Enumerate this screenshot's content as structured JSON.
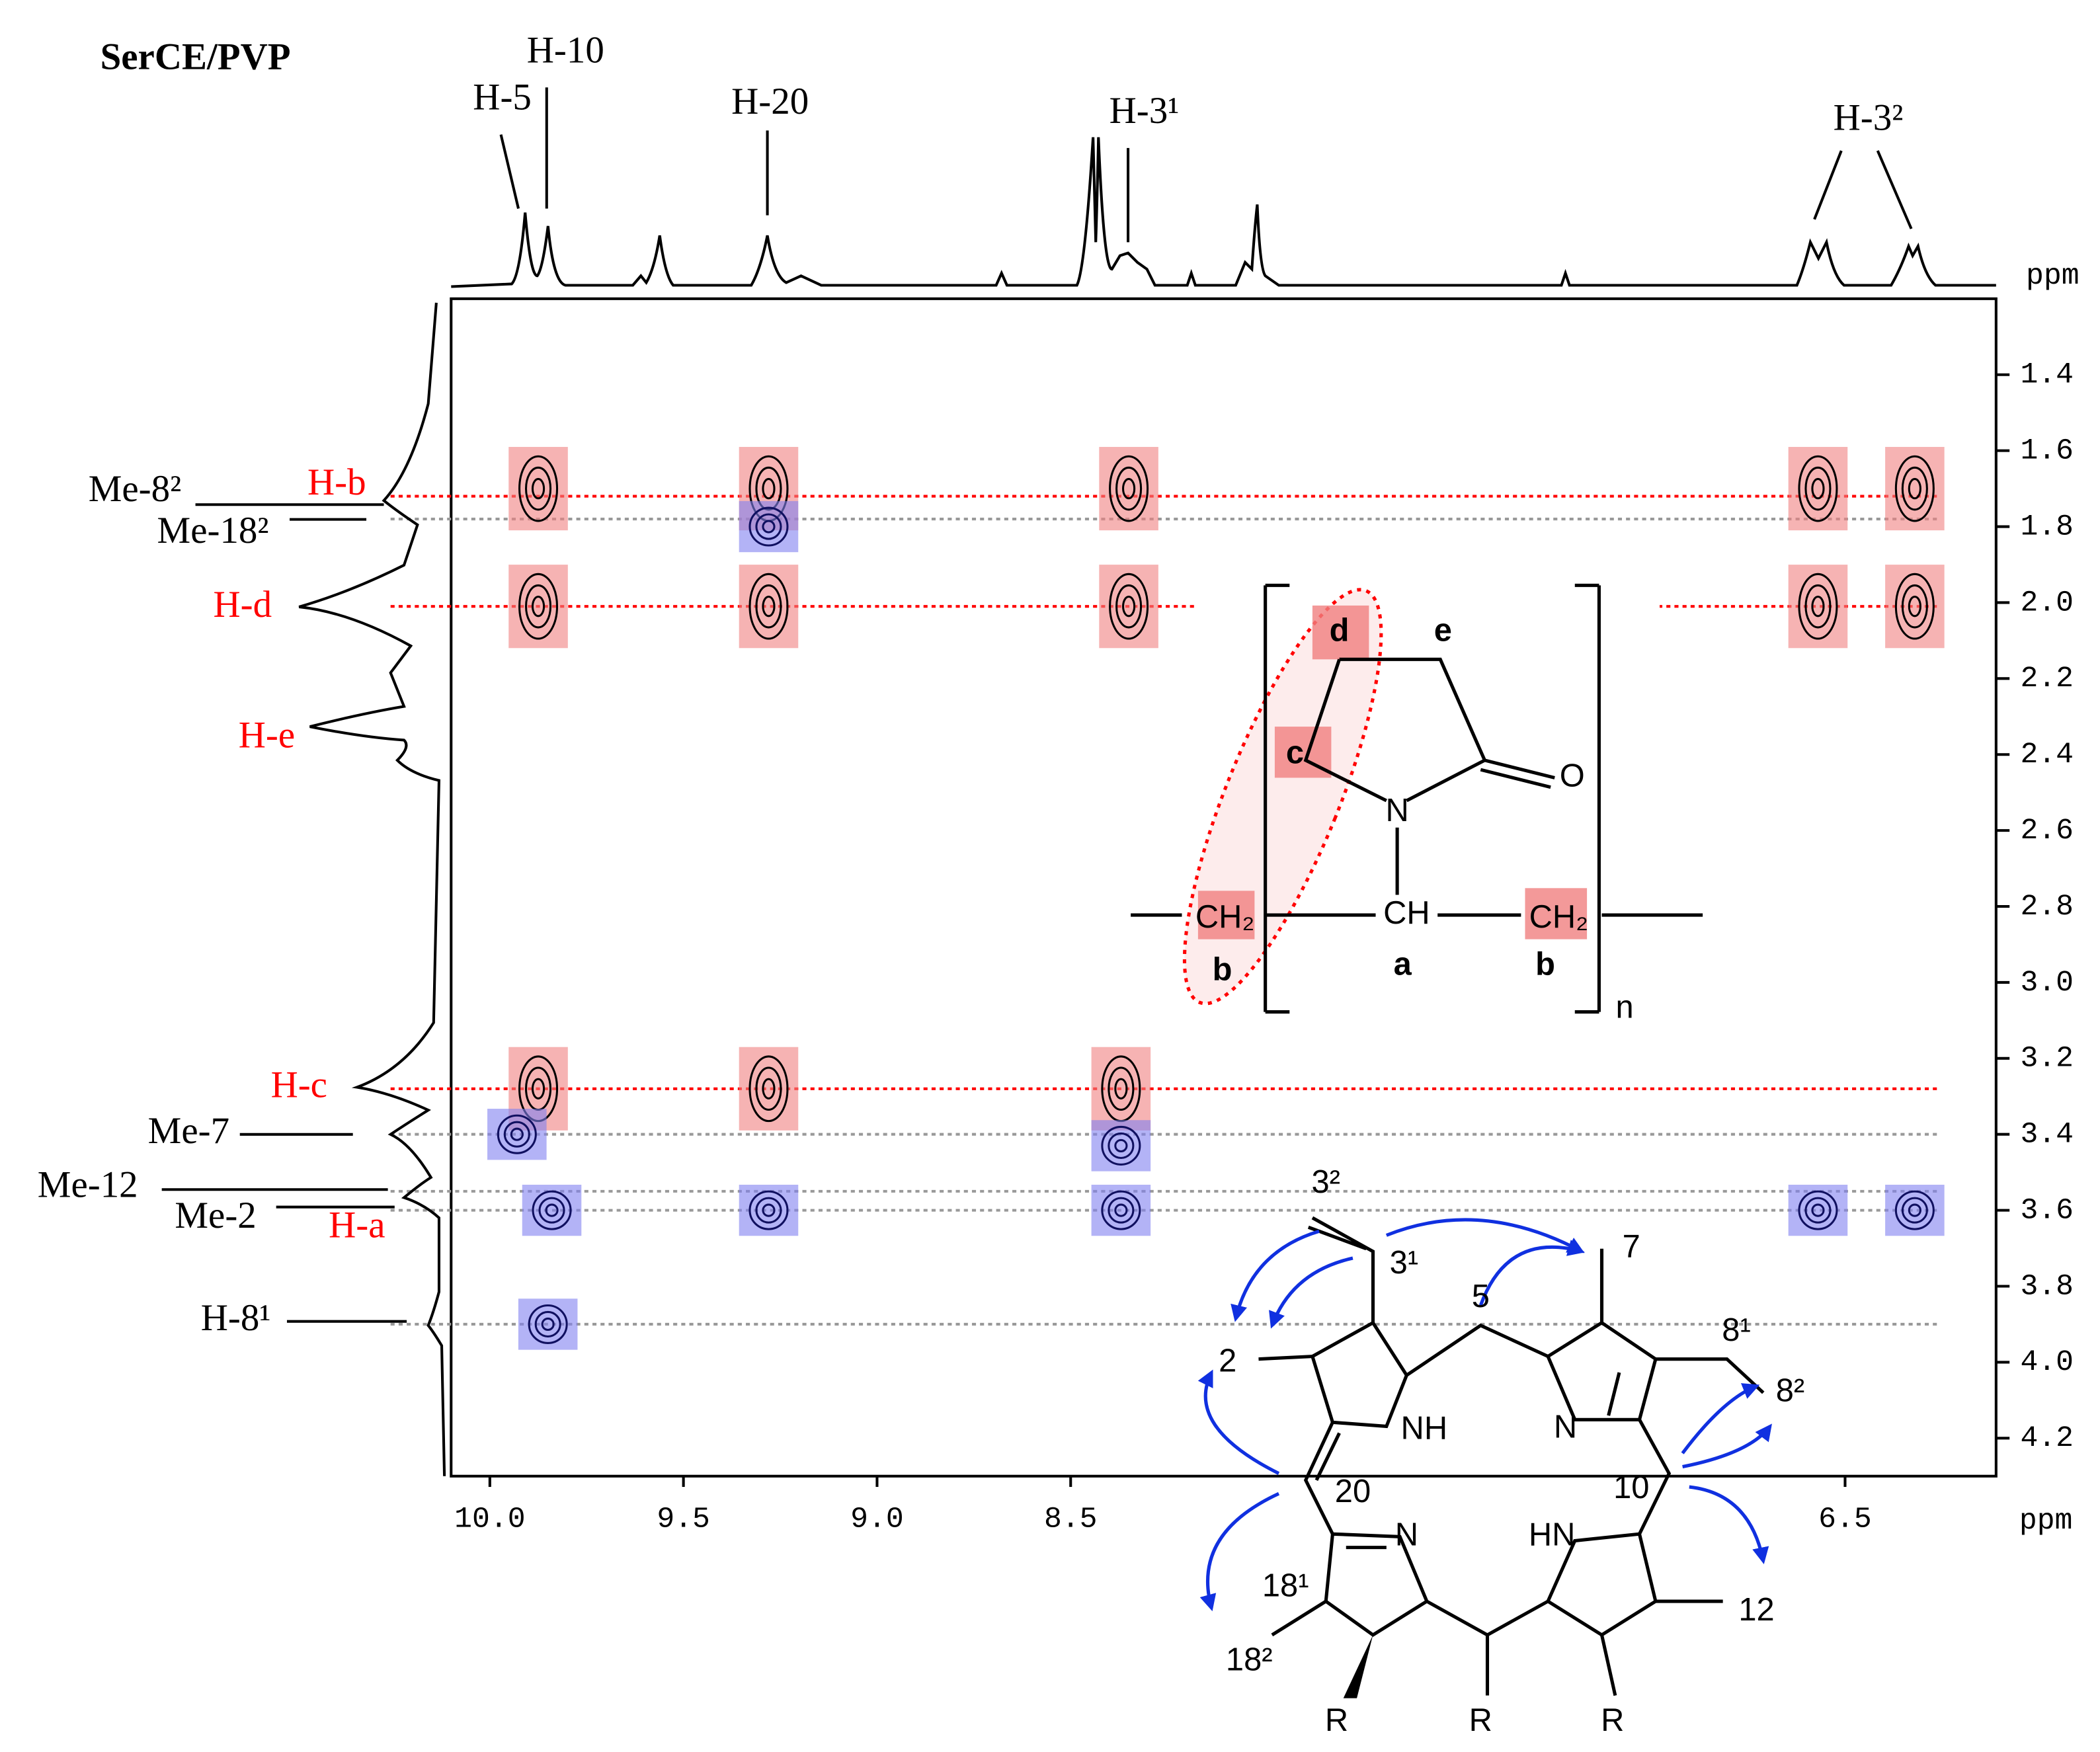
{
  "chart_data": {
    "type": "nmr2d",
    "title": "SerCE/PVP",
    "x_unit": "ppm",
    "y_unit": "ppm",
    "xlim": [
      10.1,
      6.11
    ],
    "ylim": [
      1.2,
      4.3
    ],
    "xticks": [
      {
        "value": 10,
        "label": "10.0"
      },
      9.5,
      {
        "value": 9,
        "label": "9.0"
      },
      8.5,
      6.5
    ],
    "yticks": [
      1.4,
      1.6,
      1.8,
      {
        "value": 2,
        "label": "2.0"
      },
      2.2,
      2.4,
      2.6,
      2.8,
      {
        "value": 3,
        "label": "3.0"
      },
      3.2,
      3.4,
      3.6,
      3.8,
      {
        "value": 4,
        "label": "4.0"
      },
      4.2
    ],
    "column_labels": [
      "H-5",
      "H-10",
      "H-20",
      "H-3¹",
      "H-3²"
    ],
    "row_labels": [
      {
        "text": "Me-8²",
        "color": "#000000"
      },
      {
        "text": "H-b",
        "color": "#ff0000"
      },
      {
        "text": "Me-18²",
        "color": "#000000"
      },
      {
        "text": "H-d",
        "color": "#ff0000"
      },
      {
        "text": "H-e",
        "color": "#ff0000"
      },
      {
        "text": "H-c",
        "color": "#ff0000"
      },
      {
        "text": "Me-7",
        "color": "#000000"
      },
      {
        "text": "Me-12",
        "color": "#000000"
      },
      {
        "text": "Me-2",
        "color": "#000000"
      },
      {
        "text": "H-a",
        "color": "#ff0000"
      },
      {
        "text": "H-8¹",
        "color": "#000000"
      }
    ],
    "reference_lines": [
      {
        "y": 1.72,
        "color": "#ff0000"
      },
      {
        "y": 1.78,
        "color": "#999999"
      },
      {
        "y": 2.01,
        "color": "#ff0000"
      },
      {
        "y": 3.28,
        "color": "#ff0000"
      },
      {
        "y": 3.4,
        "color": "#999999"
      },
      {
        "y": 3.55,
        "color": "#999999"
      },
      {
        "y": 3.6,
        "color": "#999999"
      },
      {
        "y": 3.9,
        "color": "#999999"
      }
    ],
    "cross_peaks": [
      {
        "x": 9.875,
        "y": 1.7,
        "color": "#f08080"
      },
      {
        "x": 9.28,
        "y": 1.7,
        "color": "#f08080"
      },
      {
        "x": 8.35,
        "y": 1.7,
        "color": "#f08080"
      },
      {
        "x": 6.57,
        "y": 1.7,
        "color": "#f08080"
      },
      {
        "x": 6.32,
        "y": 1.7,
        "color": "#f08080"
      },
      {
        "x": 9.875,
        "y": 2.01,
        "color": "#f08080"
      },
      {
        "x": 9.28,
        "y": 2.01,
        "color": "#f08080"
      },
      {
        "x": 8.35,
        "y": 2.01,
        "color": "#f08080"
      },
      {
        "x": 6.57,
        "y": 2.01,
        "color": "#f08080"
      },
      {
        "x": 6.32,
        "y": 2.01,
        "color": "#f08080"
      },
      {
        "x": 9.875,
        "y": 3.28,
        "color": "#f08080"
      },
      {
        "x": 9.28,
        "y": 3.28,
        "color": "#f08080"
      },
      {
        "x": 8.37,
        "y": 3.28,
        "color": "#f08080"
      },
      {
        "x": 9.28,
        "y": 1.8,
        "color": "#8080f0"
      },
      {
        "x": 9.93,
        "y": 3.4,
        "color": "#8080f0"
      },
      {
        "x": 8.37,
        "y": 3.43,
        "color": "#8080f0"
      },
      {
        "x": 9.84,
        "y": 3.6,
        "color": "#8080f0"
      },
      {
        "x": 9.28,
        "y": 3.6,
        "color": "#8080f0"
      },
      {
        "x": 8.37,
        "y": 3.6,
        "color": "#8080f0"
      },
      {
        "x": 9.85,
        "y": 3.9,
        "color": "#8080f0"
      },
      {
        "x": 6.57,
        "y": 3.6,
        "color": "#8080f0"
      },
      {
        "x": 6.32,
        "y": 3.6,
        "color": "#8080f0"
      }
    ]
  },
  "pvp": {
    "labels": [
      "d",
      "e",
      "c",
      "O",
      "N",
      "CH",
      "CH₂",
      "CH₂",
      "b",
      "a",
      "b",
      "n"
    ]
  },
  "chlorin": {
    "labels": [
      "3²",
      "3¹",
      "5",
      "7",
      "8¹",
      "8²",
      "2",
      "NH",
      "N",
      "20",
      "10",
      "HN",
      "N",
      "18¹",
      "18²",
      "12",
      "R",
      "R",
      "R"
    ]
  }
}
